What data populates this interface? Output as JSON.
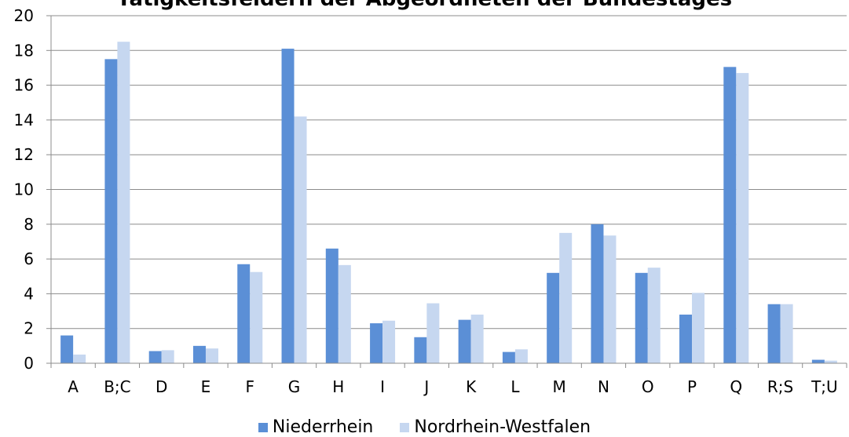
{
  "chart_data": {
    "type": "bar",
    "title": "Tätigkeitsfeldern der Abgeordneten der Bundestages",
    "xlabel": "",
    "ylabel": "",
    "ylim": [
      0,
      20
    ],
    "yticks": [
      0,
      2,
      4,
      6,
      8,
      10,
      12,
      14,
      16,
      18,
      20
    ],
    "grid": true,
    "legend_position": "bottom",
    "categories": [
      "A",
      "B;C",
      "D",
      "E",
      "F",
      "G",
      "H",
      "I",
      "J",
      "K",
      "L",
      "M",
      "N",
      "O",
      "P",
      "Q",
      "R;S",
      "T;U"
    ],
    "series": [
      {
        "name": "Niederrhein",
        "color": "#5B8FD6",
        "values": [
          1.6,
          17.5,
          0.7,
          1.0,
          5.7,
          18.1,
          6.6,
          2.3,
          1.5,
          2.5,
          0.65,
          5.2,
          8.0,
          5.2,
          2.8,
          17.05,
          3.4,
          0.2
        ]
      },
      {
        "name": "Nordrhein-Westfalen",
        "color": "#C6D7F0",
        "values": [
          0.5,
          18.5,
          0.75,
          0.85,
          5.25,
          14.2,
          5.65,
          2.45,
          3.45,
          2.8,
          0.8,
          7.5,
          7.35,
          5.5,
          4.05,
          16.7,
          3.4,
          0.15
        ]
      }
    ]
  }
}
